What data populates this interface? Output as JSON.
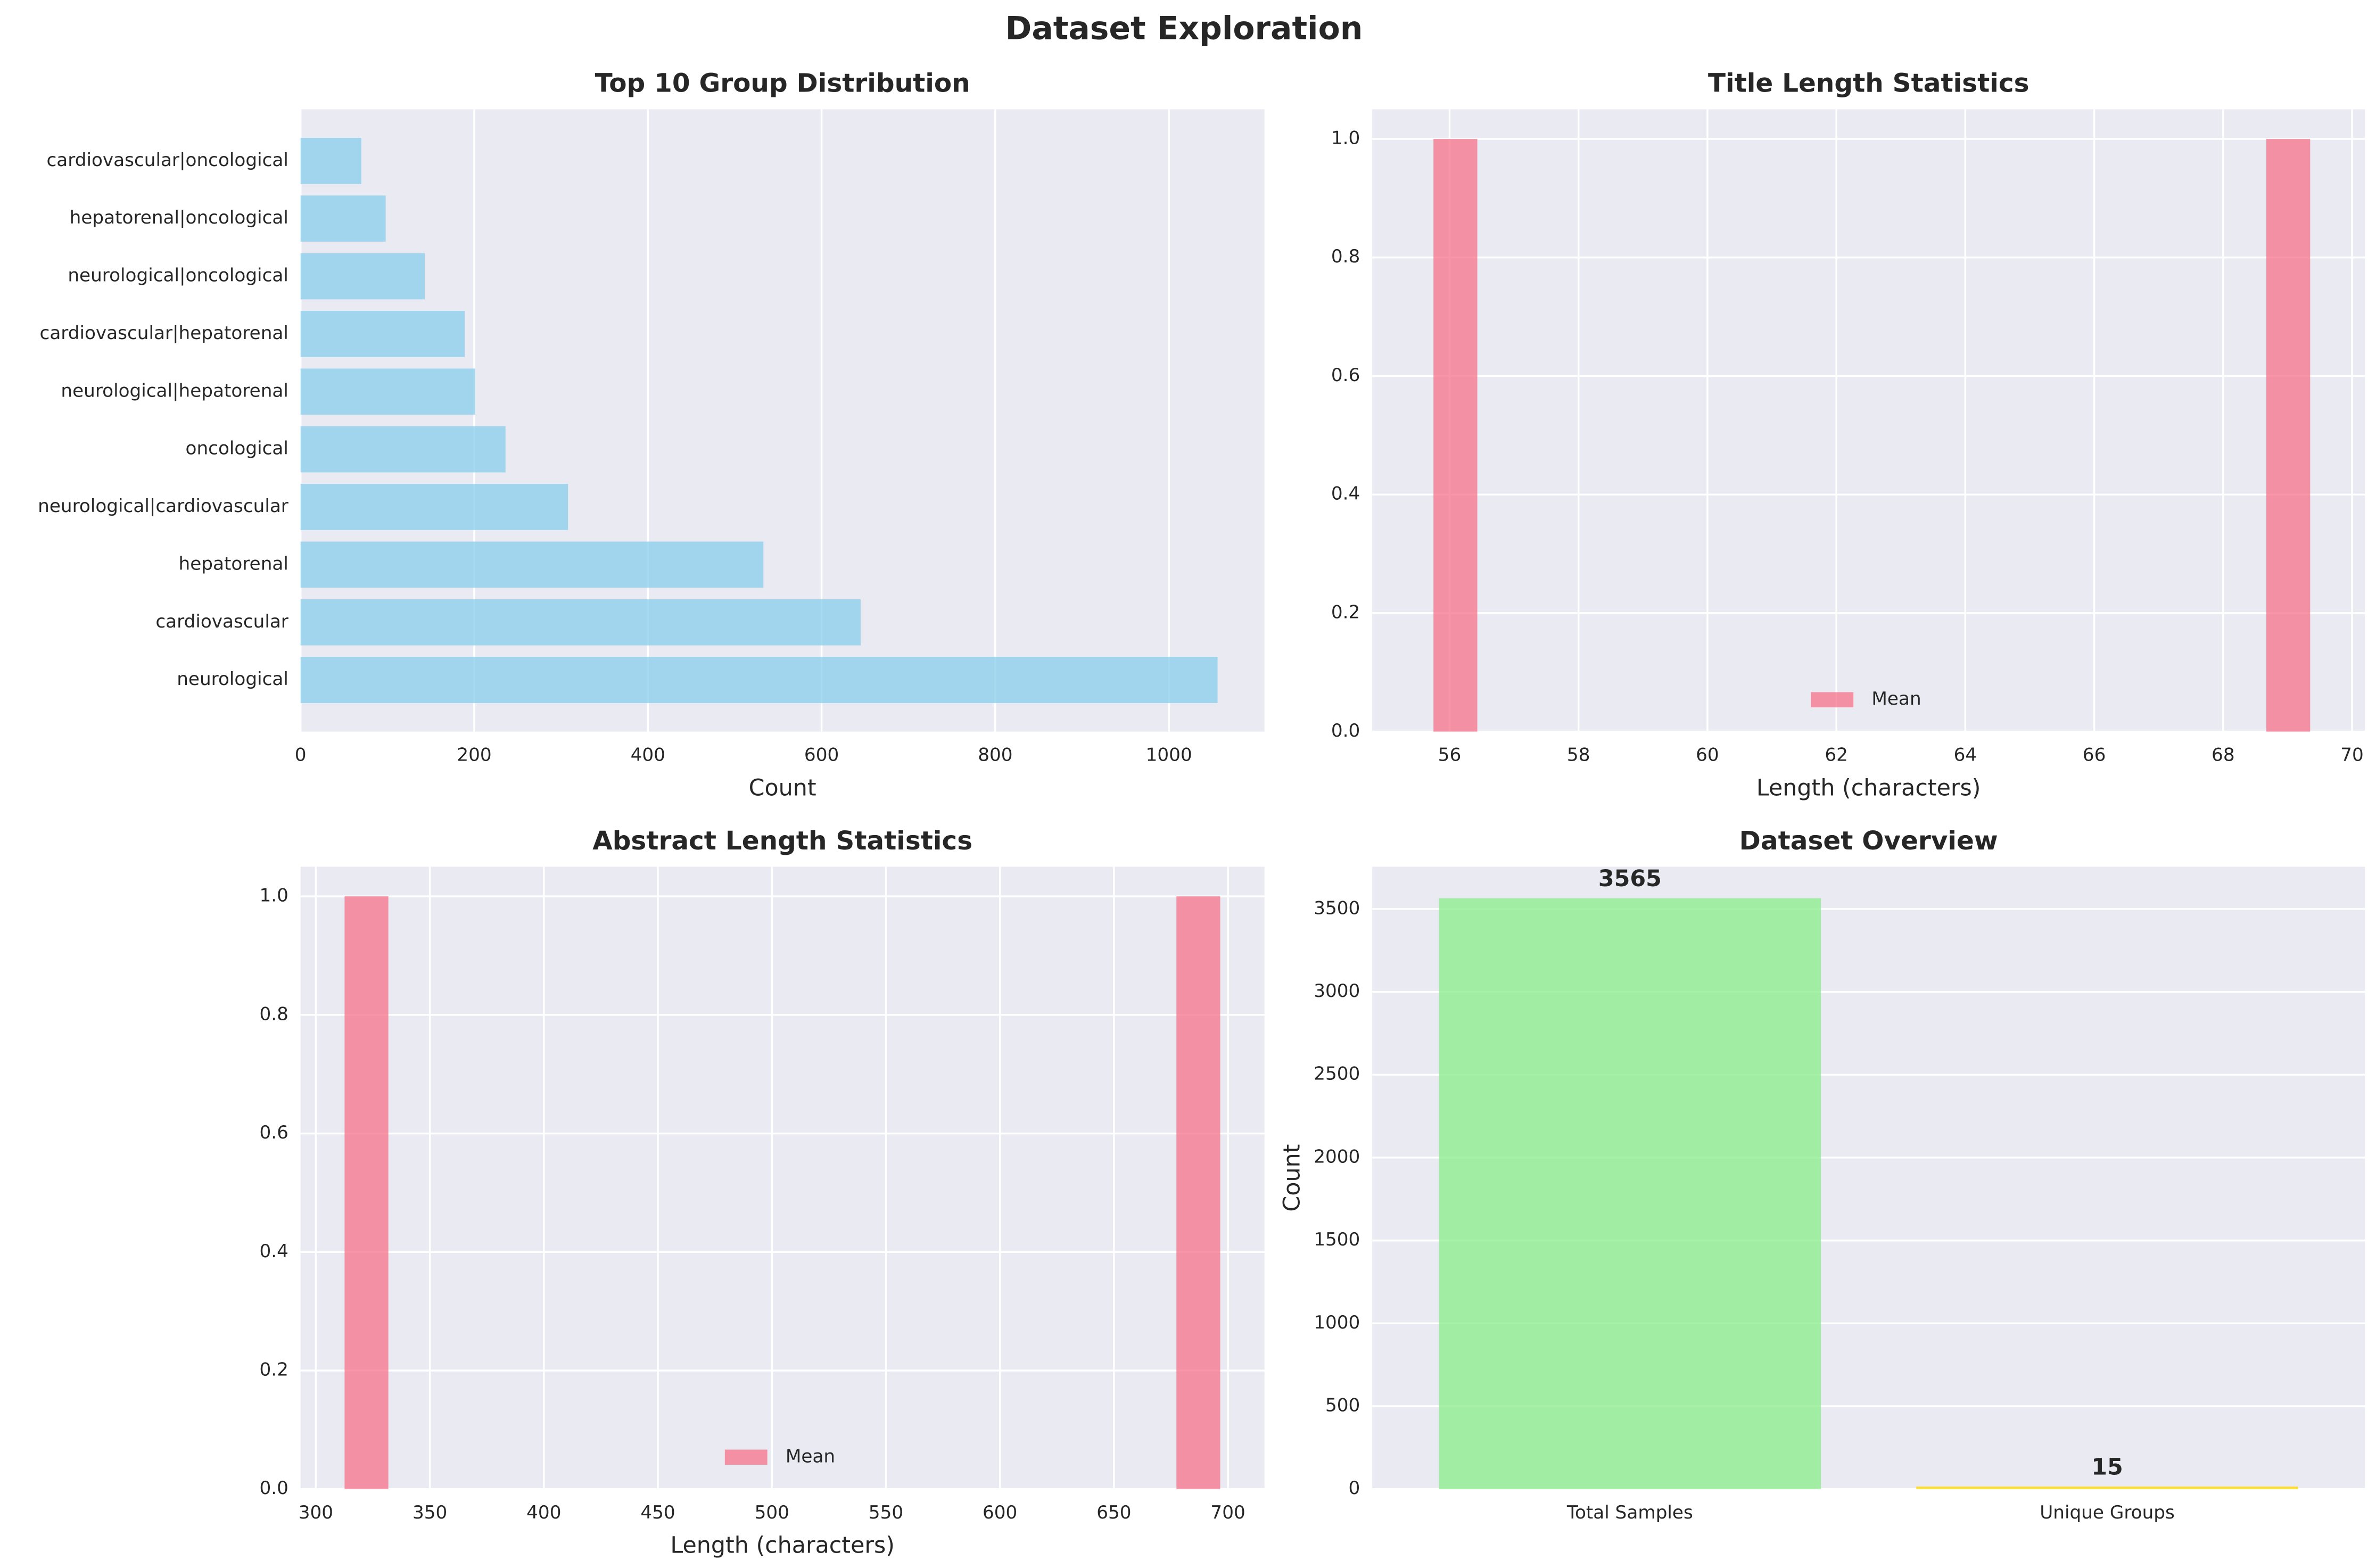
{
  "title": "Dataset Exploration",
  "chart_data": [
    {
      "type": "barh",
      "title": "Top 10 Group Distribution",
      "xlabel": "Count",
      "categories": [
        "neurological",
        "cardiovascular",
        "hepatorenal",
        "neurological|cardiovascular",
        "oncological",
        "neurological|hepatorenal",
        "cardiovascular|hepatorenal",
        "neurological|oncological",
        "hepatorenal|oncological",
        "cardiovascular|oncological"
      ],
      "values": [
        1056,
        645,
        533,
        308,
        236,
        201,
        189,
        143,
        98,
        70
      ],
      "color": "#87ceeb",
      "xlim": [
        0,
        1110
      ],
      "xticks": [
        0,
        200,
        400,
        600,
        800,
        1000
      ],
      "grid": true
    },
    {
      "type": "histogram",
      "title": "Title Length Statistics",
      "xlabel": "Length (characters)",
      "bins": [
        55.75,
        56.43,
        57.11,
        57.79,
        58.47,
        59.15,
        59.83,
        60.51,
        61.19,
        61.87,
        62.55,
        63.23,
        63.91,
        64.59,
        65.27,
        65.95,
        66.63,
        67.31,
        67.99,
        68.67,
        69.35
      ],
      "series": [
        {
          "name": "Mean",
          "color": "#f77189",
          "values": [
            1,
            0,
            0,
            0,
            0,
            0,
            0,
            0,
            0,
            0,
            0,
            0,
            0,
            0,
            0,
            0,
            0,
            0,
            0,
            1
          ]
        }
      ],
      "xlim": [
        54.8,
        70.2
      ],
      "xticks": [
        56,
        58,
        60,
        62,
        64,
        66,
        68,
        70
      ],
      "ylim": [
        0,
        1.05
      ],
      "yticks": [
        {
          "value": 0,
          "label": "0.0"
        },
        {
          "value": 0.2,
          "label": "0.2"
        },
        {
          "value": 0.4,
          "label": "0.4"
        },
        {
          "value": 0.6,
          "label": "0.6"
        },
        {
          "value": 0.8,
          "label": "0.8"
        },
        {
          "value": 1,
          "label": "1.0"
        }
      ],
      "legend": "lower center",
      "grid": true
    },
    {
      "type": "histogram",
      "title": "Abstract Length Statistics",
      "xlabel": "Length (characters)",
      "bins": [
        312.6,
        331.8,
        351,
        370.2,
        389.4,
        408.6,
        427.8,
        447,
        466.2,
        485.4,
        504.6,
        523.8,
        543,
        562.2,
        581.4,
        600.6,
        619.8,
        639,
        658.2,
        677.4,
        696.6
      ],
      "series": [
        {
          "name": "Mean",
          "color": "#f77189",
          "values": [
            1,
            0,
            0,
            0,
            0,
            0,
            0,
            0,
            0,
            0,
            0,
            0,
            0,
            0,
            0,
            0,
            0,
            0,
            0,
            1
          ]
        }
      ],
      "xlim": [
        293.3,
        716
      ],
      "xticks": [
        300,
        350,
        400,
        450,
        500,
        550,
        600,
        650,
        700
      ],
      "ylim": [
        0,
        1.05
      ],
      "yticks": [
        {
          "value": 0,
          "label": "0.0"
        },
        {
          "value": 0.2,
          "label": "0.2"
        },
        {
          "value": 0.4,
          "label": "0.4"
        },
        {
          "value": 0.6,
          "label": "0.6"
        },
        {
          "value": 0.8,
          "label": "0.8"
        },
        {
          "value": 1,
          "label": "1.0"
        }
      ],
      "legend": "lower center",
      "grid": true
    },
    {
      "type": "bar",
      "title": "Dataset Overview",
      "ylabel": "Count",
      "categories": [
        "Total Samples",
        "Unique Groups"
      ],
      "values": [
        3565,
        15
      ],
      "colors": [
        "#90ee90",
        "#ffd700"
      ],
      "ylim": [
        0,
        3755
      ],
      "yticks": [
        0,
        500,
        1000,
        1500,
        2000,
        2500,
        3000,
        3500
      ],
      "grid": true
    }
  ]
}
